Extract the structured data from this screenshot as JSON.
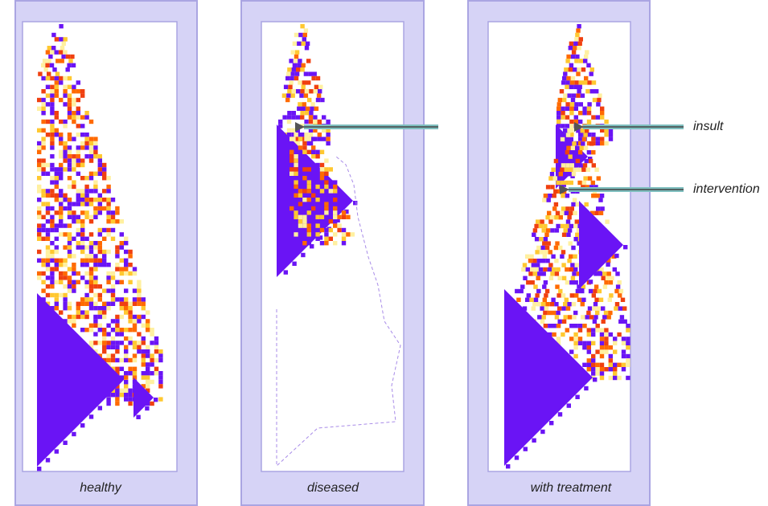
{
  "panels": [
    {
      "caption": "healthy"
    },
    {
      "caption": "diseased"
    },
    {
      "caption": "with treatment"
    }
  ],
  "annotations": [
    {
      "label": "insult"
    },
    {
      "label": "intervention"
    }
  ]
}
